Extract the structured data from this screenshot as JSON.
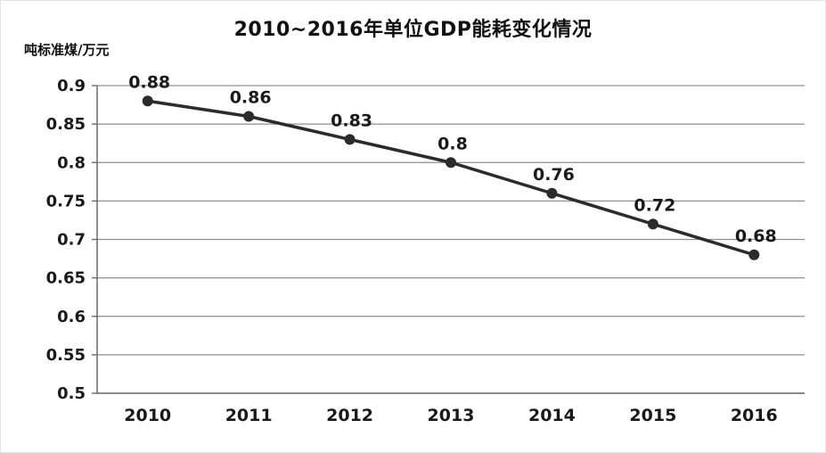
{
  "chart_data": {
    "type": "line",
    "title": "2010~2016年单位GDP能耗变化情况",
    "ylabel": "吨标准煤/万元",
    "xlabel": "",
    "categories": [
      "2010",
      "2011",
      "2012",
      "2013",
      "2014",
      "2015",
      "2016"
    ],
    "values": [
      0.88,
      0.86,
      0.83,
      0.8,
      0.76,
      0.72,
      0.68
    ],
    "point_labels": [
      "0.88",
      "0.86",
      "0.83",
      "0.8",
      "0.76",
      "0.72",
      "0.68"
    ],
    "ylim": [
      0.5,
      0.9
    ],
    "yticks": [
      0.5,
      0.55,
      0.6,
      0.65,
      0.7,
      0.75,
      0.8,
      0.85,
      0.9
    ],
    "grid": true,
    "legend": "none",
    "colors": {
      "line": "#2b2b2b",
      "marker": "#2b2b2b",
      "grid": "#8f8f8f",
      "axis": "#6a6a6a",
      "text": "#1a1a1a",
      "background": "#ffffff"
    }
  }
}
